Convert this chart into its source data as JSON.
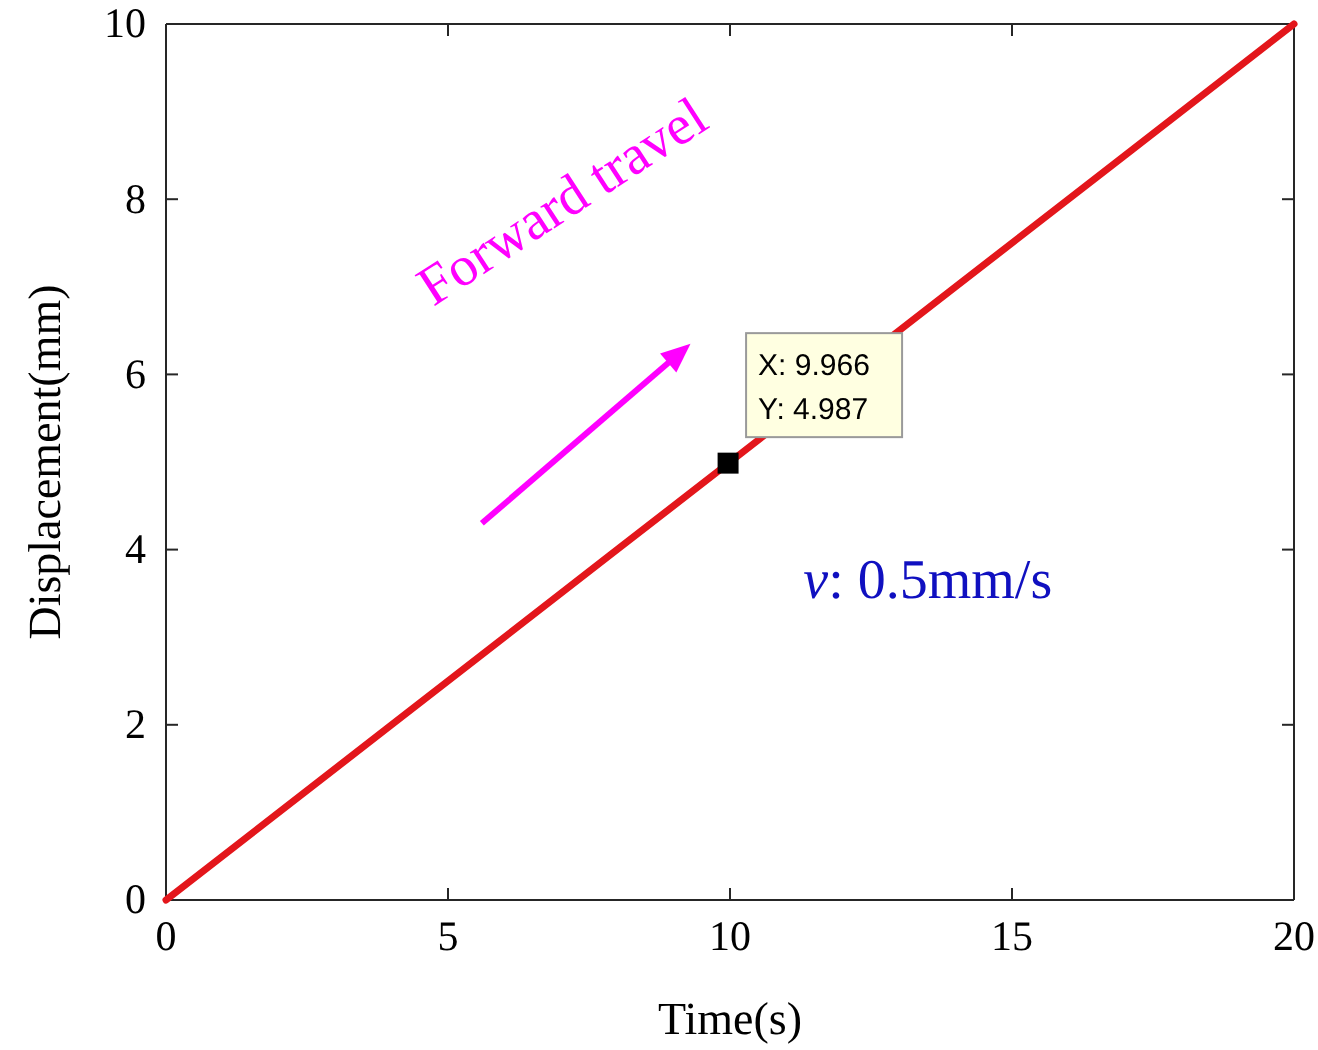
{
  "chart_data": {
    "type": "line",
    "xlabel": "Time(s)",
    "ylabel": "Displacement(mm)",
    "xlim": [
      0,
      20
    ],
    "ylim": [
      0,
      10
    ],
    "xticks": [
      0,
      5,
      10,
      15,
      20
    ],
    "yticks": [
      0,
      2,
      4,
      6,
      8,
      10
    ],
    "grid": false,
    "series": [
      {
        "color": "#e3161b",
        "x": [
          0,
          4,
          8,
          14,
          17,
          20
        ],
        "values": [
          0,
          2,
          4,
          7,
          8.5,
          10
        ]
      },
      {
        "type": "scatter",
        "marker": "square",
        "color": "#000000",
        "x": [
          9.966
        ],
        "values": [
          4.987
        ]
      }
    ],
    "annotations": [
      {
        "text": "X: 9.966\nY: 4.987",
        "x": 9.966,
        "y": 4.987
      },
      "Forward travel",
      "v: 0.5mm/s"
    ]
  }
}
